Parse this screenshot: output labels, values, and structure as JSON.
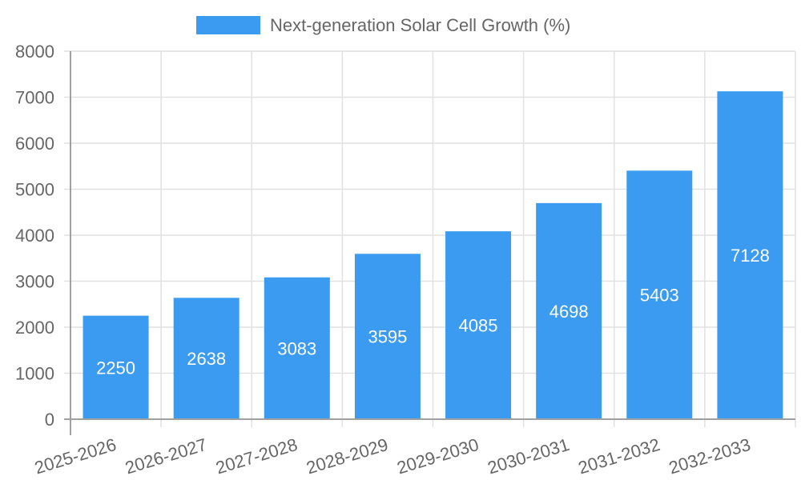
{
  "chart_data": {
    "type": "bar",
    "title": "",
    "categories": [
      "2025-2026",
      "2026-2027",
      "2027-2028",
      "2028-2029",
      "2029-2030",
      "2030-2031",
      "2031-2032",
      "2032-2033"
    ],
    "series": [
      {
        "name": "Next-generation Solar Cell Growth (%)",
        "color": "#3a9bf0",
        "values": [
          2250,
          2638,
          3083,
          3595,
          4085,
          4698,
          5403,
          7128
        ]
      }
    ],
    "xlabel": "",
    "ylabel": "",
    "ylim": [
      0,
      8000
    ],
    "yticks": [
      0,
      1000,
      2000,
      3000,
      4000,
      5000,
      6000,
      7000,
      8000
    ],
    "grid": true,
    "legend": "top-center",
    "data_labels": true
  }
}
